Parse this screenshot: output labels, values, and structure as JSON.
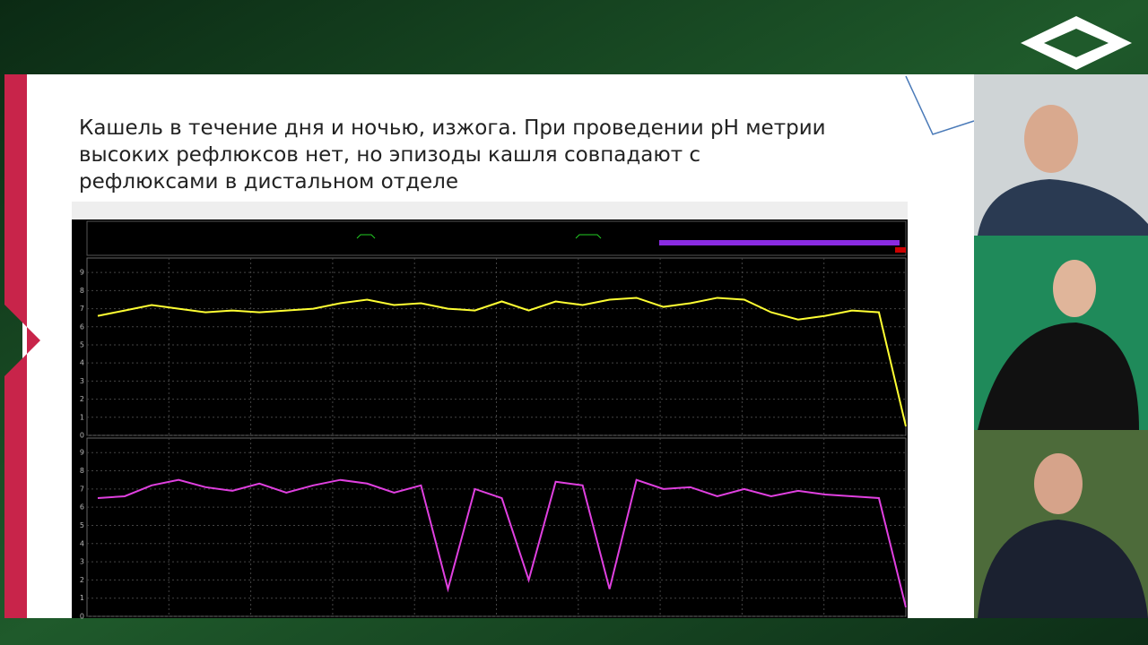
{
  "slide": {
    "title_lines": [
      "Кашель в течение дня и ночью, изжога. При проведении pH метрии",
      "высоких рефлюксов нет, но эпизоды кашля совпадают с",
      "рефлюксами в дистальном отделе"
    ]
  },
  "chart_data": [
    {
      "type": "line",
      "ylim": [
        0,
        9.8
      ],
      "yticks": [
        0,
        1,
        2,
        3,
        4,
        5,
        6,
        7,
        8,
        9
      ],
      "grid": true,
      "series": [
        {
          "color": "#ffff33",
          "values": [
            6.6,
            6.9,
            7.2,
            7.0,
            6.8,
            6.9,
            6.8,
            6.9,
            7.0,
            7.3,
            7.5,
            7.2,
            7.3,
            7.0,
            6.9,
            7.4,
            6.9,
            7.4,
            7.2,
            7.5,
            7.6,
            7.1,
            7.3,
            7.6,
            7.5,
            6.8,
            6.4,
            6.6,
            6.9,
            6.8,
            0.5
          ]
        }
      ]
    },
    {
      "type": "line",
      "ylim": [
        0,
        9.8
      ],
      "yticks": [
        0,
        1,
        2,
        3,
        4,
        5,
        6,
        7,
        8,
        9
      ],
      "grid": true,
      "series": [
        {
          "color": "#e040e0",
          "values": [
            6.5,
            6.6,
            7.2,
            7.5,
            7.1,
            6.9,
            7.3,
            6.8,
            7.2,
            7.5,
            7.3,
            6.8,
            7.2,
            1.5,
            7.0,
            6.5,
            2.0,
            7.4,
            7.2,
            1.5,
            7.5,
            7.0,
            7.1,
            6.6,
            7.0,
            6.6,
            6.9,
            6.7,
            6.6,
            6.5,
            0.5
          ]
        }
      ]
    }
  ]
}
